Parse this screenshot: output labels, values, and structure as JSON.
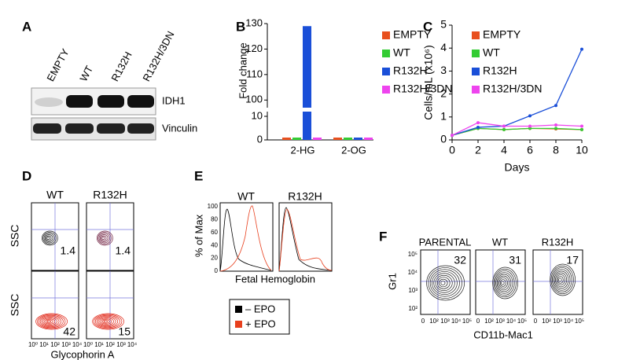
{
  "panel_labels": [
    "A",
    "B",
    "C",
    "D",
    "E",
    "F"
  ],
  "blot": {
    "lanes": [
      "EMPTY",
      "WT",
      "R132H",
      "R132H/3DN"
    ],
    "bands": [
      "IDH1",
      "Vinculin"
    ]
  },
  "chart_data": [
    {
      "type": "bar",
      "ylabel": "Fold change",
      "categories": [
        "2-HG",
        "2-OG"
      ],
      "series": [
        {
          "name": "EMPTY",
          "color": "#e8501e",
          "values": [
            1,
            1
          ]
        },
        {
          "name": "WT",
          "color": "#33cc33",
          "values": [
            1,
            1
          ]
        },
        {
          "name": "R132H",
          "color": "#1a4fd8",
          "values": [
            129,
            1
          ]
        },
        {
          "name": "R132H/3DN",
          "color": "#ee44ee",
          "values": [
            1,
            1
          ]
        }
      ],
      "ylim_lower": [
        0,
        12
      ],
      "yticks_lower": [
        0,
        10
      ],
      "ylim_upper": [
        97,
        130
      ],
      "yticks_upper": [
        100,
        110,
        120,
        130
      ]
    },
    {
      "type": "line",
      "xlabel": "Days",
      "ylabel": "Cells/mL (x10⁶)",
      "x": [
        0,
        2,
        4,
        6,
        8,
        10
      ],
      "series": [
        {
          "name": "EMPTY",
          "color": "#e8501e",
          "values": [
            0.2,
            0.5,
            0.45,
            0.5,
            0.48,
            0.45
          ]
        },
        {
          "name": "WT",
          "color": "#33cc33",
          "values": [
            0.2,
            0.5,
            0.45,
            0.5,
            0.5,
            0.45
          ]
        },
        {
          "name": "R132H",
          "color": "#1a4fd8",
          "values": [
            0.2,
            0.55,
            0.6,
            1.05,
            1.5,
            3.95
          ]
        },
        {
          "name": "R132H/3DN",
          "color": "#ee44ee",
          "values": [
            0.2,
            0.75,
            0.6,
            0.6,
            0.65,
            0.6
          ]
        }
      ],
      "xlim": [
        0,
        10
      ],
      "xticks": [
        0,
        2,
        4,
        6,
        8,
        10
      ],
      "ylim": [
        0,
        5
      ],
      "yticks": [
        0,
        1,
        2,
        3,
        4,
        5
      ]
    }
  ],
  "flow_d": {
    "columns": [
      "WT",
      "R132H"
    ],
    "ylabel": "SSC",
    "values": [
      [
        1.4,
        1.4
      ],
      [
        42,
        15
      ]
    ],
    "xticks": [
      "10⁰",
      "10¹",
      "10²",
      "10³",
      "10⁴"
    ],
    "xlabel": "Glycophorin A"
  },
  "histogram_e": {
    "columns": [
      "WT",
      "R132H"
    ],
    "ylabel": "% of Max",
    "yticks": [
      0,
      20,
      40,
      60,
      80,
      100
    ],
    "xlabel": "Fetal Hemoglobin",
    "legend": [
      "– EPO",
      "+ EPO"
    ]
  },
  "flow_f": {
    "columns": [
      "PARENTAL",
      "WT",
      "R132H"
    ],
    "values": [
      32,
      31,
      17
    ],
    "ylabel": "Gr1",
    "yticks": [
      "10⁵",
      "10⁴",
      "10³",
      "10²"
    ],
    "xticks": [
      "0",
      "10²",
      "10³",
      "10⁴",
      "10⁵"
    ],
    "xlabel": "CD11b-Mac1"
  }
}
